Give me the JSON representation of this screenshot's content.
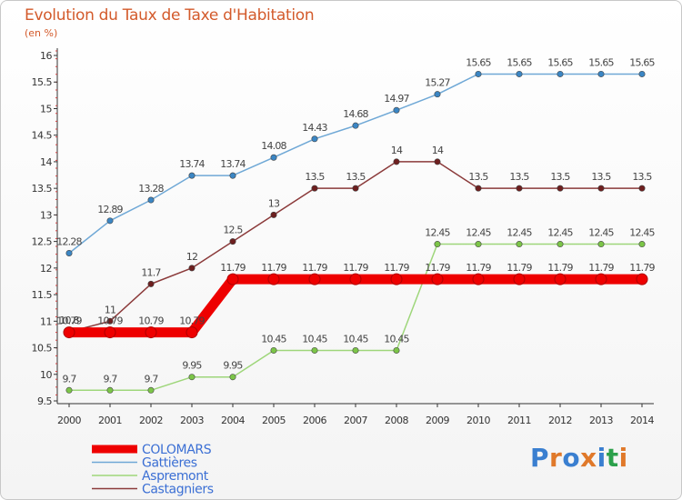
{
  "header": {
    "title": "Evolution du Taux de Taxe d'Habitation",
    "unit": "(en %)"
  },
  "logo": {
    "text": "Proxiti"
  },
  "chart_data": {
    "type": "line",
    "x": [
      "2000",
      "2001",
      "2002",
      "2003",
      "2004",
      "2005",
      "2006",
      "2007",
      "2008",
      "2009",
      "2010",
      "2011",
      "2012",
      "2013",
      "2014"
    ],
    "ylim": [
      9.5,
      16
    ],
    "yticks": [
      "9.5",
      "10",
      "10.5",
      "11",
      "11.5",
      "12",
      "12.5",
      "13",
      "13.5",
      "14",
      "14.5",
      "15",
      "15.5",
      "16"
    ],
    "grid": false,
    "legend": "bottom-left",
    "series": [
      {
        "name": "Gattières",
        "color": "#6fa8d6",
        "point_color": "#3b86c4",
        "values": [
          12.28,
          12.89,
          13.28,
          13.74,
          13.74,
          14.08,
          14.43,
          14.68,
          14.97,
          15.27,
          15.65,
          15.65,
          15.65,
          15.65,
          15.65
        ],
        "labels": [
          "12.28",
          "12.89",
          "13.28",
          "13.74",
          "13.74",
          "14.08",
          "14.43",
          "14.68",
          "14.97",
          "15.27",
          "15.65",
          "15.65",
          "15.65",
          "15.65",
          "15.65"
        ]
      },
      {
        "name": "Castagniers",
        "color": "#8b3a3a",
        "point_color": "#6e1f1f",
        "values": [
          10.8,
          11,
          11.7,
          12,
          12.5,
          13,
          13.5,
          13.5,
          14,
          14,
          13.5,
          13.5,
          13.5,
          13.5,
          13.5
        ],
        "labels": [
          "10.8",
          "11",
          "11.7",
          "12",
          "12.5",
          "13",
          "13.5",
          "13.5",
          "14",
          "14",
          "13.5",
          "13.5",
          "13.5",
          "13.5",
          "13.5"
        ]
      },
      {
        "name": "Aspremont",
        "color": "#9ed67a",
        "point_color": "#7cc548",
        "values": [
          9.7,
          9.7,
          9.7,
          9.95,
          9.95,
          10.45,
          10.45,
          10.45,
          10.45,
          12.45,
          12.45,
          12.45,
          12.45,
          12.45,
          12.45
        ],
        "labels": [
          "9.7",
          "9.7",
          "9.7",
          "9.95",
          "9.95",
          "10.45",
          "10.45",
          "10.45",
          "10.45",
          "12.45",
          "12.45",
          "12.45",
          "12.45",
          "12.45",
          "12.45"
        ]
      },
      {
        "name": "COLOMARS",
        "color": "#ee0000",
        "point_color": "#ee0000",
        "values": [
          10.79,
          10.79,
          10.79,
          10.79,
          11.79,
          11.79,
          11.79,
          11.79,
          11.79,
          11.79,
          11.79,
          11.79,
          11.79,
          11.79,
          11.79
        ],
        "labels": [
          "10.79",
          "10.79",
          "10.79",
          "10.79",
          "11.79",
          "11.79",
          "11.79",
          "11.79",
          "11.79",
          "11.79",
          "11.79",
          "11.79",
          "11.79",
          "11.79",
          "11.79"
        ]
      }
    ],
    "legend_items": [
      {
        "name": "COLOMARS",
        "color": "#ee0000",
        "text_color": "#3b6fd4"
      },
      {
        "name": "Gattières",
        "color": "#6fa8d6",
        "text_color": "#3b6fd4"
      },
      {
        "name": "Aspremont",
        "color": "#9ed67a",
        "text_color": "#3b6fd4"
      },
      {
        "name": "Castagniers",
        "color": "#8b3a3a",
        "text_color": "#3b6fd4"
      }
    ]
  }
}
